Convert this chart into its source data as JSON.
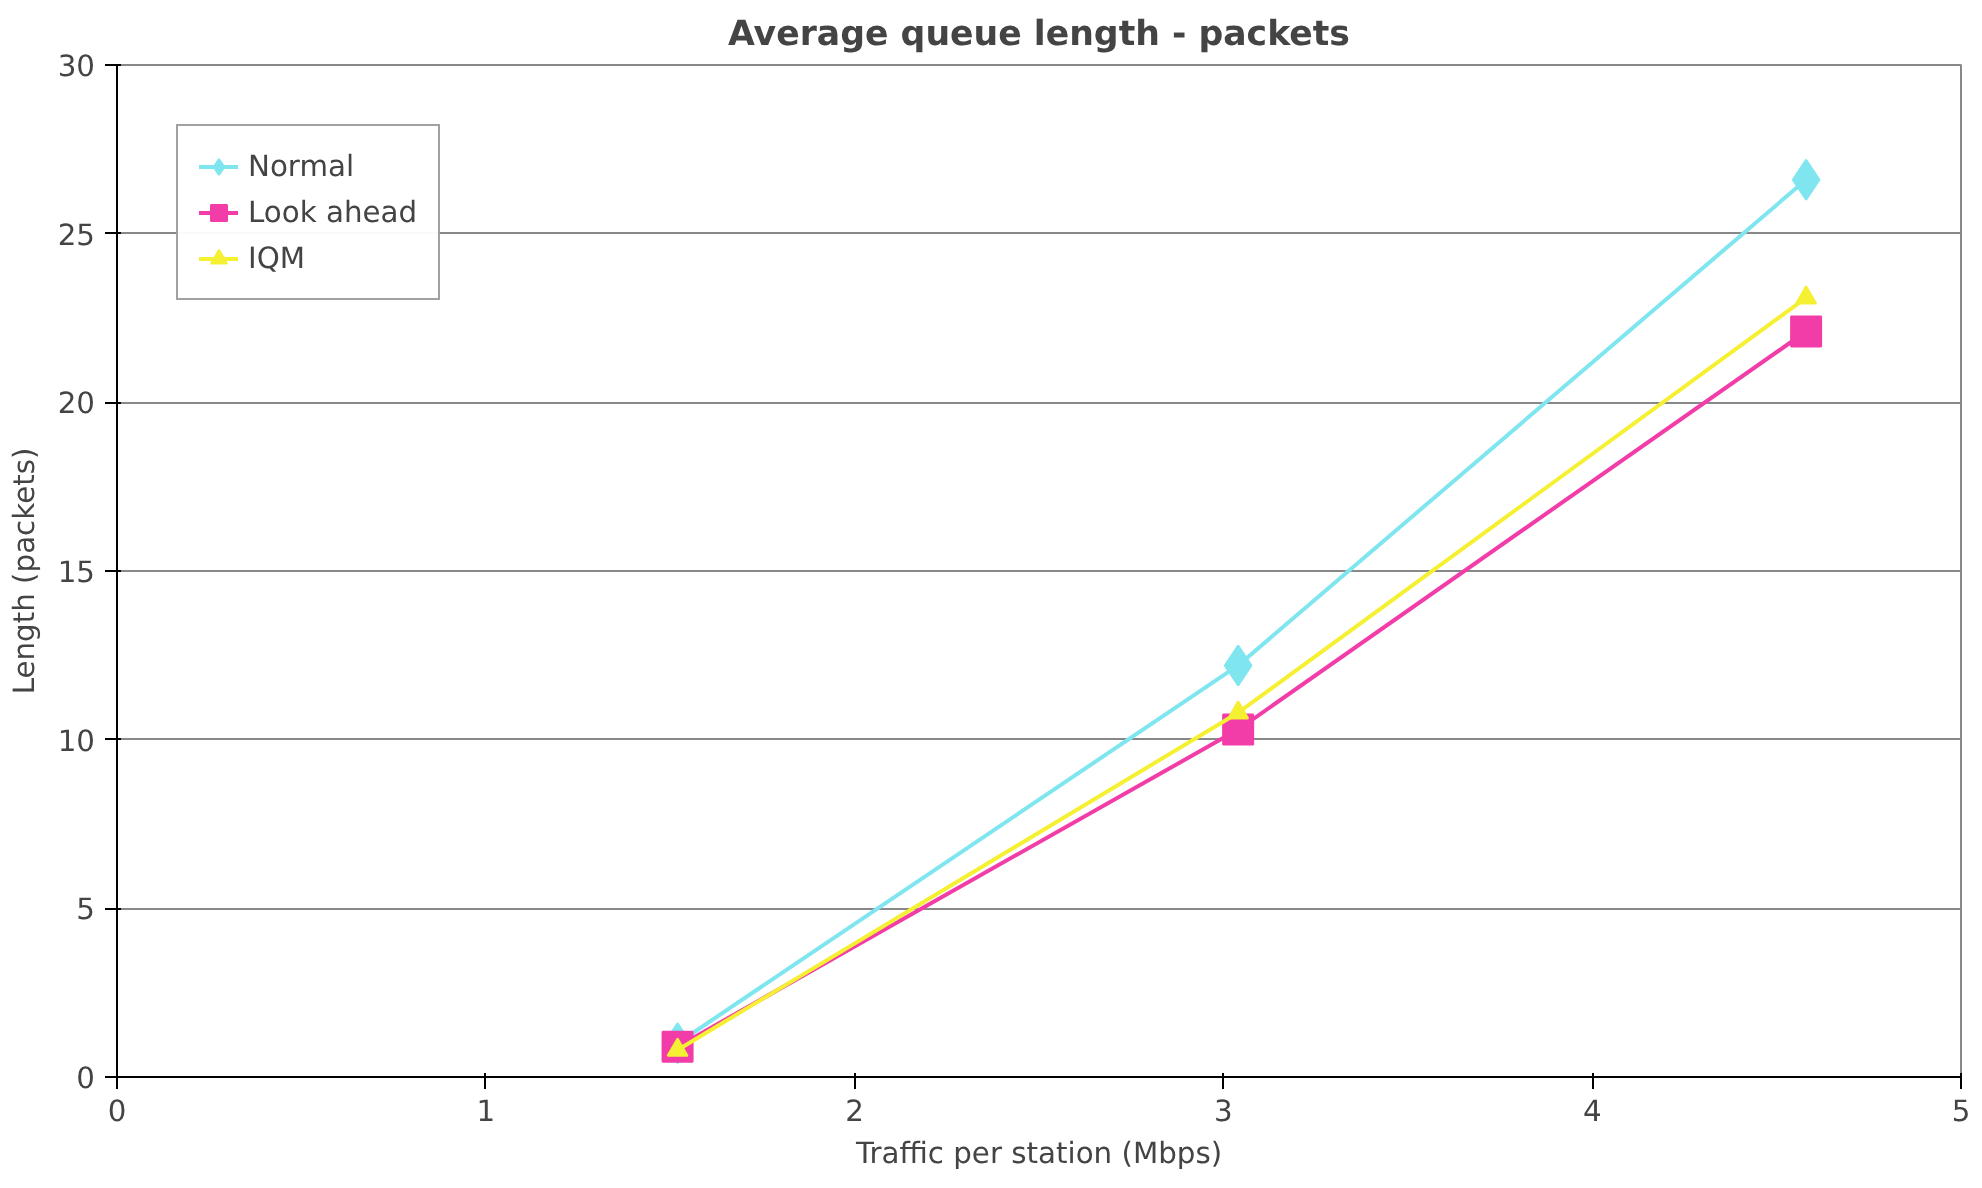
{
  "chart_data": {
    "type": "line",
    "title": "Average queue length - packets",
    "xlabel": "Traffic per station (Mbps)",
    "ylabel": "Length (packets)",
    "x": [
      1.52,
      3.04,
      4.58
    ],
    "series": [
      {
        "name": "Normal",
        "color": "#7fe6f0",
        "marker": "diamond",
        "values": [
          1.0,
          12.2,
          26.6
        ]
      },
      {
        "name": "Look ahead",
        "color": "#f23ca8",
        "marker": "square",
        "values": [
          0.9,
          10.3,
          22.1
        ]
      },
      {
        "name": "IQM",
        "color": "#f5f032",
        "marker": "triangle",
        "values": [
          0.8,
          10.8,
          23.1
        ]
      }
    ],
    "xlim": [
      0,
      5
    ],
    "xticks": [
      0,
      1,
      2,
      3,
      4,
      5
    ],
    "ylim": [
      0,
      30
    ],
    "yticks": [
      0,
      5,
      10,
      15,
      20,
      25,
      30
    ],
    "grid": "y",
    "legend": "top left",
    "line_style": "solid"
  }
}
